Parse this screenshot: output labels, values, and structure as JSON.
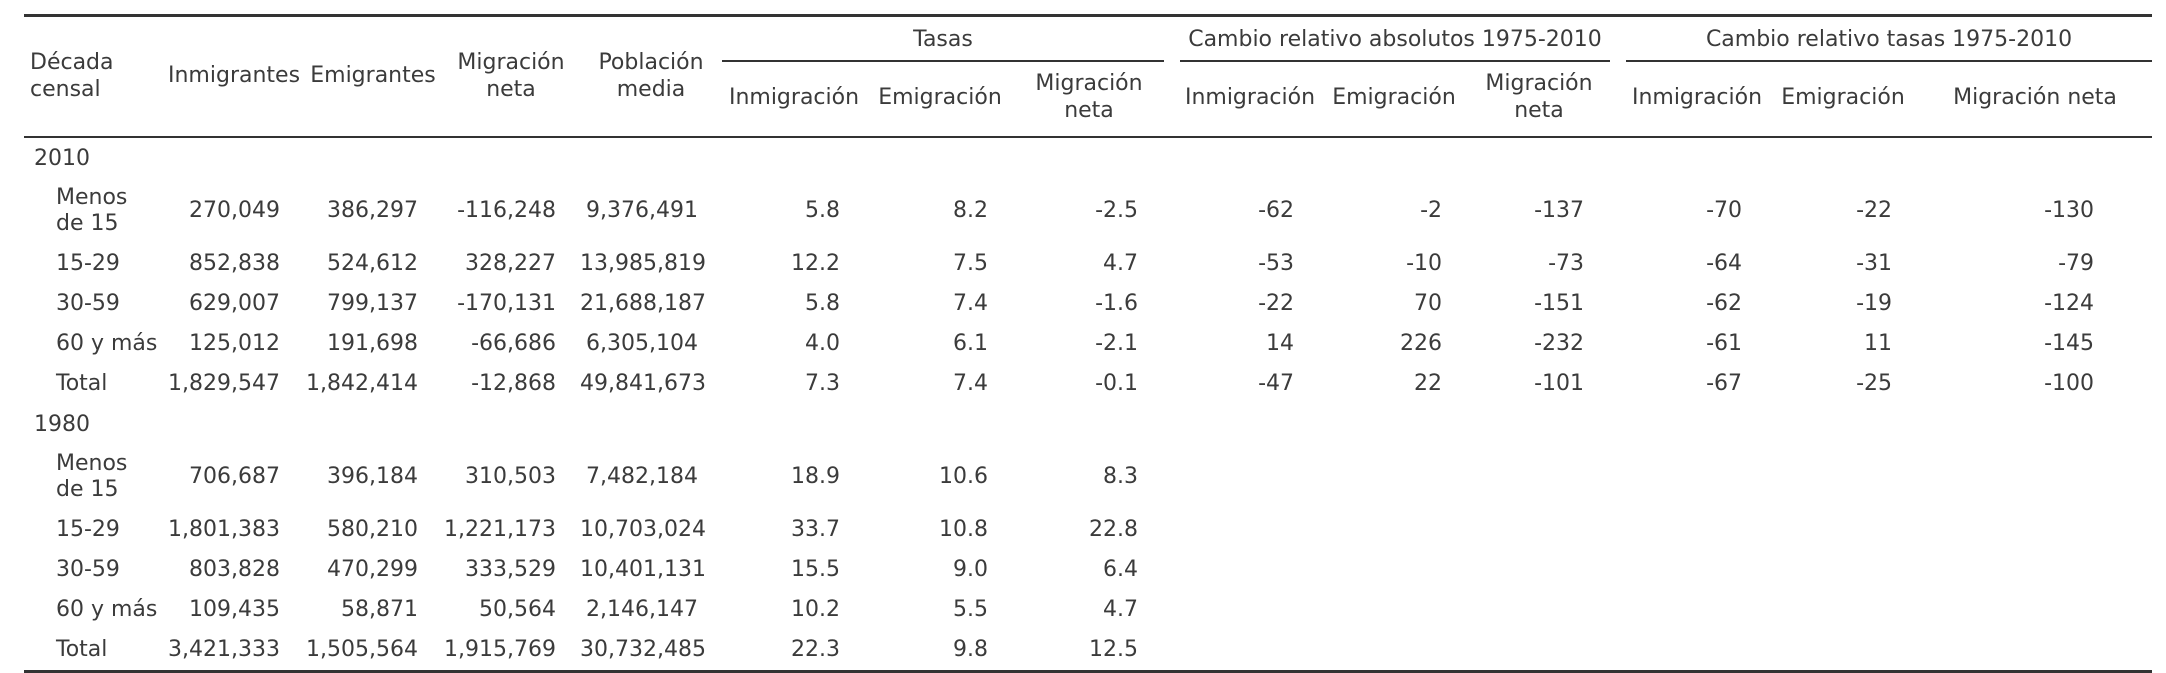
{
  "chart_data": {
    "type": "table",
    "column_groups": [
      {
        "label": "",
        "span": 5
      },
      {
        "label": "Tasas",
        "span": 3
      },
      {
        "label": "Cambio relativo absolutos 1975-2010",
        "span": 3
      },
      {
        "label": "Cambio relativo tasas 1975-2010",
        "span": 3
      }
    ],
    "columns": [
      "Década\ncensal",
      "Inmigrantes",
      "Emigrantes",
      "Migración\nneta",
      "Población\nmedia",
      "Inmigración",
      "Emigración",
      "Migración\nneta",
      "Inmigración",
      "Emigración",
      "Migración\nneta",
      "Inmigración",
      "Emigración",
      "Migración neta"
    ],
    "sections": [
      {
        "label": "2010",
        "rows": [
          {
            "label": "Menos\nde 15",
            "values": [
              "270,049",
              "386,297",
              "-116,248",
              "9,376,491",
              "5.8",
              "8.2",
              "-2.5",
              "-62",
              "-2",
              "-137",
              "-70",
              "-22",
              "-130"
            ]
          },
          {
            "label": "15-29",
            "values": [
              "852,838",
              "524,612",
              "328,227",
              "13,985,819",
              "12.2",
              "7.5",
              "4.7",
              "-53",
              "-10",
              "-73",
              "-64",
              "-31",
              "-79"
            ]
          },
          {
            "label": "30-59",
            "values": [
              "629,007",
              "799,137",
              "-170,131",
              "21,688,187",
              "5.8",
              "7.4",
              "-1.6",
              "-22",
              "70",
              "-151",
              "-62",
              "-19",
              "-124"
            ]
          },
          {
            "label": "60 y más",
            "values": [
              "125,012",
              "191,698",
              "-66,686",
              "6,305,104",
              "4.0",
              "6.1",
              "-2.1",
              "14",
              "226",
              "-232",
              "-61",
              "11",
              "-145"
            ]
          },
          {
            "label": "Total",
            "values": [
              "1,829,547",
              "1,842,414",
              "-12,868",
              "49,841,673",
              "7.3",
              "7.4",
              "-0.1",
              "-47",
              "22",
              "-101",
              "-67",
              "-25",
              "-100"
            ]
          }
        ]
      },
      {
        "label": "1980",
        "rows": [
          {
            "label": "Menos\nde 15",
            "values": [
              "706,687",
              "396,184",
              "310,503",
              "7,482,184",
              "18.9",
              "10.6",
              "8.3",
              "",
              "",
              "",
              "",
              "",
              ""
            ]
          },
          {
            "label": "15-29",
            "values": [
              "1,801,383",
              "580,210",
              "1,221,173",
              "10,703,024",
              "33.7",
              "10.8",
              "22.8",
              "",
              "",
              "",
              "",
              "",
              ""
            ]
          },
          {
            "label": "30-59",
            "values": [
              "803,828",
              "470,299",
              "333,529",
              "10,401,131",
              "15.5",
              "9.0",
              "6.4",
              "",
              "",
              "",
              "",
              "",
              ""
            ]
          },
          {
            "label": "60 y más",
            "values": [
              "109,435",
              "58,871",
              "50,564",
              "2,146,147",
              "10.2",
              "5.5",
              "4.7",
              "",
              "",
              "",
              "",
              "",
              ""
            ]
          },
          {
            "label": "Total",
            "values": [
              "3,421,333",
              "1,505,564",
              "1,915,769",
              "30,732,485",
              "22.3",
              "9.8",
              "12.5",
              "",
              "",
              "",
              "",
              "",
              ""
            ]
          }
        ]
      }
    ],
    "colors": {
      "text": "#3b3b3b",
      "rule": "#333333"
    },
    "layout": {
      "grid": "horizontal rules only (top, under header, under group spanners, bottom)",
      "numeric_alignment": "right"
    }
  }
}
